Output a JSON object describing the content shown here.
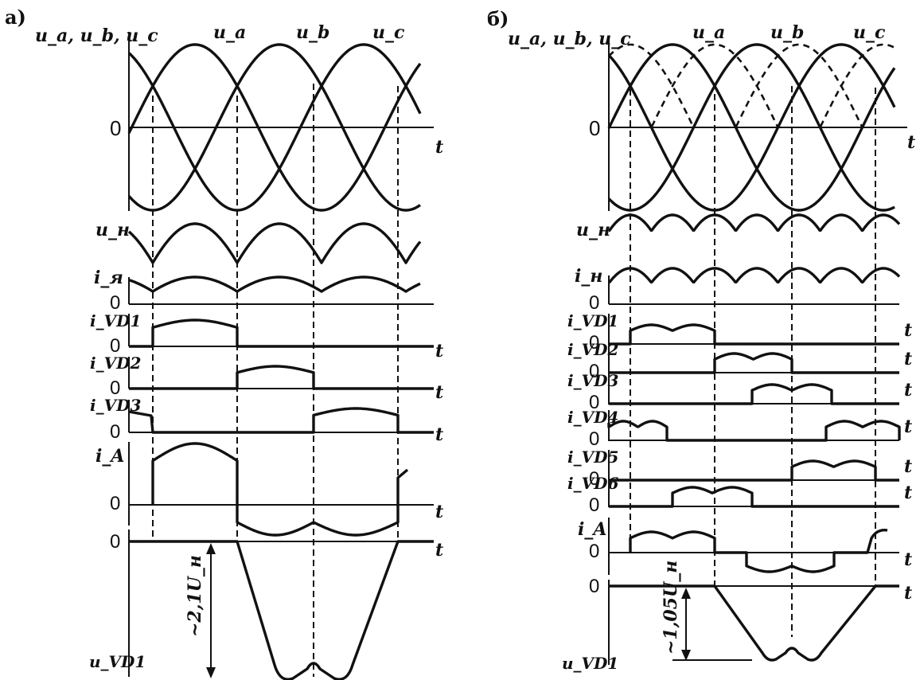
{
  "left": {
    "tag": "а)",
    "phase_axis_label": "u_a, u_b, u_c",
    "phase_names": [
      "u_a",
      "u_b",
      "u_c"
    ],
    "load_voltage_label": "u_н",
    "load_current_label": "i_я",
    "diode_current_labels": [
      "i_VD1",
      "i_VD2",
      "i_VD3"
    ],
    "line_current_label": "i_A",
    "diode_voltage_label": "u_VD1",
    "amplitude_annotation": "~2,1U_н",
    "zero": "0",
    "time": "t"
  },
  "right": {
    "tag": "б)",
    "phase_axis_label": "u_a, u_b, u_c",
    "phase_names": [
      "u_a",
      "u_b",
      "u_c"
    ],
    "load_voltage_label": "u_н",
    "load_current_label": "i_н",
    "diode_current_labels": [
      "i_VD1",
      "i_VD2",
      "i_VD3",
      "i_VD4",
      "i_VD5",
      "i_VD6"
    ],
    "line_current_label": "i_A",
    "diode_voltage_label": "u_VD1",
    "amplitude_annotation": "~1,05U_н",
    "zero": "0",
    "time": "t"
  }
}
